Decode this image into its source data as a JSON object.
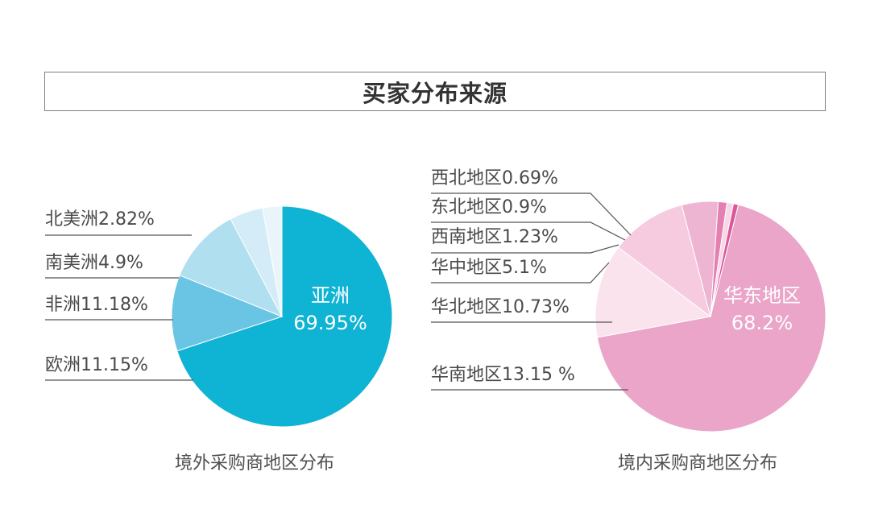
{
  "title": "买家分布来源",
  "chart_data": [
    {
      "type": "pie",
      "caption": "境外采购商地区分布",
      "slices": [
        {
          "name": "亚洲",
          "value": 69.95,
          "label": "亚洲",
          "value_label": "69.95%",
          "color": "#0fb3d3"
        },
        {
          "name": "欧洲",
          "value": 11.15,
          "label": "欧洲11.15%",
          "color": "#6ac4e3"
        },
        {
          "name": "非洲",
          "value": 11.18,
          "label": "非洲11.18%",
          "color": "#b0dff0"
        },
        {
          "name": "南美洲",
          "value": 4.9,
          "label": "南美洲4.9%",
          "color": "#d4ecf7"
        },
        {
          "name": "北美洲",
          "value": 2.82,
          "label": "北美洲2.82%",
          "color": "#e9f5fb"
        }
      ]
    },
    {
      "type": "pie",
      "caption": "境内采购商地区分布",
      "slices": [
        {
          "name": "华东地区",
          "value": 68.2,
          "label": "华东地区",
          "value_label": "68.2%",
          "color": "#eaa5c9"
        },
        {
          "name": "华南地区",
          "value": 13.15,
          "label": "华南地区13.15 %",
          "color": "#fbe3ee"
        },
        {
          "name": "华北地区",
          "value": 10.73,
          "label": "华北地区10.73%",
          "color": "#f6cbe0"
        },
        {
          "name": "华中地区",
          "value": 5.1,
          "label": "华中地区5.1%",
          "color": "#eeb5d2"
        },
        {
          "name": "西南地区",
          "value": 1.23,
          "label": "西南地区1.23%",
          "color": "#e47fb2"
        },
        {
          "name": "东北地区",
          "value": 0.9,
          "label": "东北地区0.9%",
          "color": "#f7d6e6"
        },
        {
          "name": "西北地区",
          "value": 0.69,
          "label": "西北地区0.69%",
          "color": "#d9589a"
        }
      ]
    }
  ]
}
